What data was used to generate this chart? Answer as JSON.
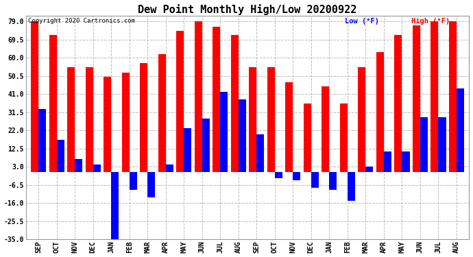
{
  "title": "Dew Point Monthly High/Low 20200922",
  "copyright": "Copyright 2020 Cartronics.com",
  "legend_low": "Low (°F)",
  "legend_high": "High (°F)",
  "months": [
    "SEP",
    "OCT",
    "NOV",
    "DEC",
    "JAN",
    "FEB",
    "MAR",
    "APR",
    "MAY",
    "JUN",
    "JUL",
    "AUG",
    "SEP",
    "OCT",
    "NOV",
    "DEC",
    "JAN",
    "FEB",
    "MAR",
    "APR",
    "MAY",
    "JUN",
    "JUL",
    "AUG"
  ],
  "high": [
    79.0,
    72.0,
    55.0,
    55.0,
    50.0,
    52.0,
    57.0,
    62.0,
    74.0,
    79.0,
    76.0,
    72.0,
    55.0,
    55.0,
    47.0,
    36.0,
    45.0,
    36.0,
    55.0,
    63.0,
    72.0,
    77.0,
    79.0,
    79.0
  ],
  "low": [
    33.0,
    17.0,
    7.0,
    4.0,
    -35.0,
    -9.0,
    -13.0,
    4.0,
    23.0,
    28.0,
    42.0,
    38.0,
    20.0,
    -3.0,
    -4.0,
    -8.0,
    -9.0,
    -15.0,
    3.0,
    11.0,
    11.0,
    29.0,
    29.0,
    44.0
  ],
  "ylim": [
    -35.0,
    82.0
  ],
  "yticks": [
    79.0,
    69.5,
    60.0,
    50.5,
    41.0,
    31.5,
    22.0,
    12.5,
    3.0,
    -6.5,
    -16.0,
    -25.5,
    -35.0
  ],
  "bar_width": 0.42,
  "high_color": "#ff0000",
  "low_color": "#0000ff",
  "bg_color": "#ffffff",
  "grid_color": "#bbbbbb",
  "title_fontsize": 11,
  "tick_fontsize": 7,
  "label_fontsize": 7,
  "copyright_fontsize": 6.5,
  "legend_fontsize": 7.5
}
